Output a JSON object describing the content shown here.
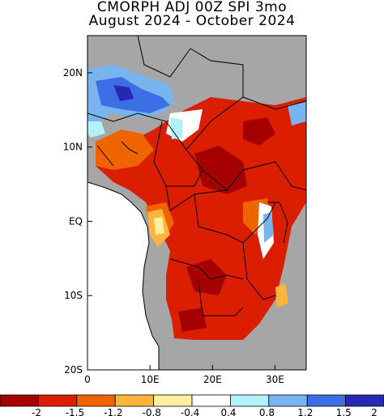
{
  "map": {
    "title": "CMORPH ADJ 00Z SPI 3mo",
    "subtitle": "August 2024 - October 2024",
    "lon_labels": [
      {
        "label": "0",
        "lon": 0
      },
      {
        "label": "10E",
        "lon": 10
      },
      {
        "label": "20E",
        "lon": 20
      },
      {
        "label": "30E",
        "lon": 30
      }
    ],
    "lat_labels": [
      {
        "label": "20N",
        "lat": 20
      },
      {
        "label": "10N",
        "lat": 10
      },
      {
        "label": "EQ",
        "lat": 0
      },
      {
        "label": "10S",
        "lat": -10
      },
      {
        "label": "20S",
        "lat": -20
      }
    ],
    "extent": {
      "lon_min": 0,
      "lon_max": 35,
      "lat_min": -20,
      "lat_max": 25
    },
    "land_color": "#a6a6a6",
    "ocean_color": "#ffffff"
  },
  "legend": {
    "colors": [
      "#a50000",
      "#dc1e00",
      "#f06400",
      "#ffb43c",
      "#fff0a0",
      "#ffffff",
      "#b4f0fa",
      "#78b4f0",
      "#3c6ee6",
      "#2828b4"
    ],
    "labels": [
      "-2",
      "-1.5",
      "-1.2",
      "-0.8",
      "-0.4",
      "0.4",
      "0.8",
      "1.2",
      "1.5",
      "2"
    ]
  }
}
